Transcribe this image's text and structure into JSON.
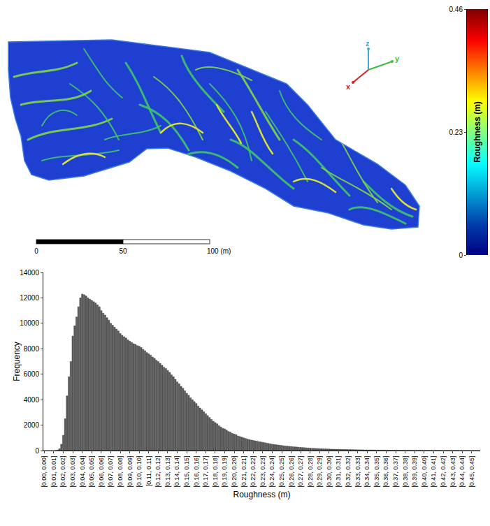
{
  "map": {
    "axes_triad": [
      "z",
      "y",
      "x"
    ],
    "scale_bar": {
      "ticks": [
        0,
        50,
        {
          "value": 100,
          "label": "100 (m)"
        }
      ]
    }
  },
  "chart_data": [
    {
      "type": "colorbar",
      "ylabel": "Roughness (m)",
      "ylim": [
        0,
        0.46
      ],
      "yticks": [
        0,
        0.23,
        0.46
      ]
    },
    {
      "type": "bar",
      "xlabel": "Roughness (m)",
      "ylabel": "Frequency",
      "color": "#5f5f5f",
      "grid": false,
      "ylim": [
        0,
        14000
      ],
      "yticks": [
        0,
        2000,
        4000,
        6000,
        8000,
        10000,
        12000,
        14000
      ],
      "categories": [
        "[0.00, 0.00]",
        null,
        null,
        null,
        null,
        "[0.01, 0.01]",
        null,
        null,
        null,
        null,
        "[0.02, 0.02]",
        null,
        null,
        null,
        null,
        "[0.03, 0.03]",
        null,
        null,
        null,
        null,
        "[0.04, 0.04]",
        null,
        null,
        null,
        null,
        "[0.05, 0.05]",
        null,
        null,
        null,
        null,
        "[0.06, 0.06]",
        null,
        null,
        null,
        null,
        "[0.07, 0.07]",
        null,
        null,
        null,
        null,
        "[0.08, 0.08]",
        null,
        null,
        null,
        null,
        "[0.09, 0.09]",
        null,
        null,
        null,
        null,
        "[0.10, 0.10]",
        null,
        null,
        null,
        null,
        "[0.11, 0.11]",
        null,
        null,
        null,
        null,
        "[0.12, 0.12]",
        null,
        null,
        null,
        null,
        "[0.13, 0.13]",
        null,
        null,
        null,
        null,
        "[0.14, 0.14]",
        null,
        null,
        null,
        null,
        "[0.15, 0.15]",
        null,
        null,
        null,
        null,
        "[0.16, 0.16]",
        null,
        null,
        null,
        null,
        "[0.17, 0.17]",
        null,
        null,
        null,
        null,
        "[0.18, 0.18]",
        null,
        null,
        null,
        null,
        "[0.19, 0.19]",
        null,
        null,
        null,
        null,
        "[0.20, 0.20]",
        null,
        null,
        null,
        null,
        "[0.21, 0.21]",
        null,
        null,
        null,
        null,
        "[0.22, 0.22]",
        null,
        null,
        null,
        null,
        "[0.23, 0.23]",
        null,
        null,
        null,
        null,
        "[0.24, 0.24]",
        null,
        null,
        null,
        null,
        "[0.25, 0.25]",
        null,
        null,
        null,
        null,
        "[0.26, 0.26]",
        null,
        null,
        null,
        null,
        "[0.27, 0.27]",
        null,
        null,
        null,
        null,
        "[0.28, 0.28]",
        null,
        null,
        null,
        null,
        "[0.29, 0.29]",
        null,
        null,
        null,
        null,
        "[0.30, 0.30]",
        null,
        null,
        null,
        null,
        "[0.31, 0.31]",
        null,
        null,
        null,
        null,
        "[0.32, 0.32]",
        null,
        null,
        null,
        null,
        "[0.33, 0.33]",
        null,
        null,
        null,
        null,
        "[0.34, 0.34]",
        null,
        null,
        null,
        null,
        "[0.35, 0.35]",
        null,
        null,
        null,
        null,
        "[0.36, 0.36]",
        null,
        null,
        null,
        null,
        "[0.37, 0.37]",
        null,
        null,
        null,
        null,
        "[0.38, 0.38]",
        null,
        null,
        null,
        null,
        "[0.39, 0.39]",
        null,
        null,
        null,
        null,
        "[0.40, 0.40]",
        null,
        null,
        null,
        null,
        "[0.41, 0.41]",
        null,
        null,
        null,
        null,
        "[0.42, 0.42]",
        null,
        null,
        null,
        null,
        "[0.43, 0.43]",
        null,
        null,
        null,
        null,
        "[0.44, 0.44]",
        null,
        null,
        null,
        null,
        "[0.45, 0.45]",
        null,
        null,
        null,
        null
      ],
      "values": [
        0,
        0,
        0,
        0,
        0,
        0,
        10,
        40,
        150,
        500,
        1200,
        2500,
        4300,
        5800,
        7000,
        9000,
        9800,
        10500,
        11300,
        12000,
        12300,
        12250,
        12150,
        12000,
        11900,
        11800,
        11700,
        11600,
        11450,
        11300,
        11000,
        10800,
        10650,
        10450,
        10250,
        10000,
        9850,
        9700,
        9550,
        9400,
        9200,
        9050,
        8950,
        8850,
        8700,
        8600,
        8500,
        8400,
        8350,
        8250,
        8200,
        8100,
        7950,
        7850,
        7700,
        7600,
        7500,
        7350,
        7250,
        7100,
        7000,
        6850,
        6700,
        6550,
        6450,
        6300,
        6150,
        5950,
        5800,
        5600,
        5400,
        5250,
        5050,
        4900,
        4700,
        4500,
        4350,
        4150,
        4000,
        3850,
        3700,
        3500,
        3350,
        3200,
        3050,
        2900,
        2750,
        2600,
        2450,
        2300,
        2200,
        2100,
        1950,
        1850,
        1750,
        1700,
        1600,
        1500,
        1450,
        1350,
        1300,
        1250,
        1150,
        1100,
        1050,
        1000,
        950,
        900,
        860,
        830,
        800,
        770,
        740,
        700,
        680,
        650,
        620,
        590,
        560,
        530,
        500,
        480,
        460,
        440,
        420,
        400,
        380,
        360,
        350,
        330,
        320,
        300,
        290,
        280,
        260,
        250,
        240,
        230,
        215,
        200,
        190,
        180,
        175,
        165,
        160,
        150,
        145,
        140,
        130,
        125,
        120,
        115,
        110,
        105,
        100,
        95,
        92,
        90,
        87,
        84,
        80,
        77,
        74,
        71,
        68,
        65,
        62,
        60,
        58,
        56,
        52,
        50,
        48,
        46,
        44,
        42,
        40,
        38,
        37,
        36,
        35,
        34,
        33,
        32,
        31,
        30,
        29,
        28,
        27,
        26,
        25,
        25,
        24,
        23,
        23,
        22,
        22,
        21,
        21,
        20,
        20,
        19,
        19,
        18,
        18,
        17,
        17,
        16,
        16,
        16,
        15,
        15,
        14,
        14,
        14,
        13,
        13,
        13,
        12,
        12,
        12,
        11,
        11,
        11,
        10,
        10,
        10,
        10,
        9,
        9
      ]
    }
  ]
}
